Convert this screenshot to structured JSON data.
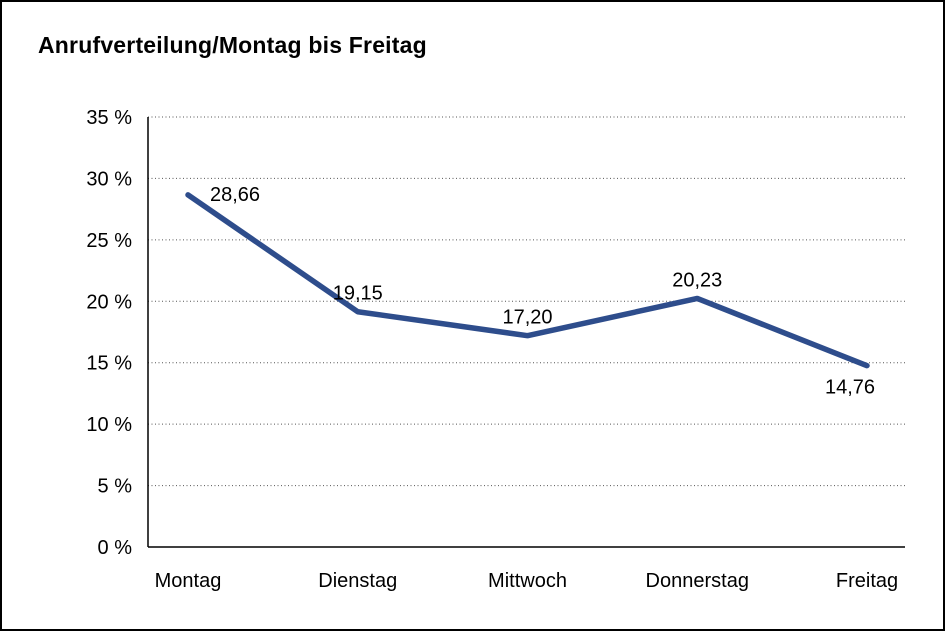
{
  "chart_data": {
    "type": "line",
    "title": "Anrufverteilung/Montag bis Freitag",
    "categories": [
      "Montag",
      "Dienstag",
      "Mittwoch",
      "Donnerstag",
      "Freitag"
    ],
    "series": [
      {
        "name": "Anrufverteilung",
        "values": [
          28.66,
          19.15,
          17.2,
          20.23,
          14.76
        ],
        "data_labels": [
          "28,66",
          "19,15",
          "17,20",
          "20,23",
          "14,76"
        ],
        "label_positions": [
          "right",
          "above",
          "above",
          "above",
          "below"
        ]
      }
    ],
    "y_ticks": [
      "0 %",
      "5 %",
      "10 %",
      "15 %",
      "20 %",
      "25 %",
      "30 %",
      "35 %"
    ],
    "ylim": [
      0,
      35
    ],
    "y_step": 5,
    "xlabel": "",
    "ylabel": "",
    "grid": "dotted-horizontal",
    "legend": "none",
    "line_color": "#2e4d8c",
    "axis_color": "#000000",
    "grid_color": "#555555",
    "label_color": "#000000"
  }
}
